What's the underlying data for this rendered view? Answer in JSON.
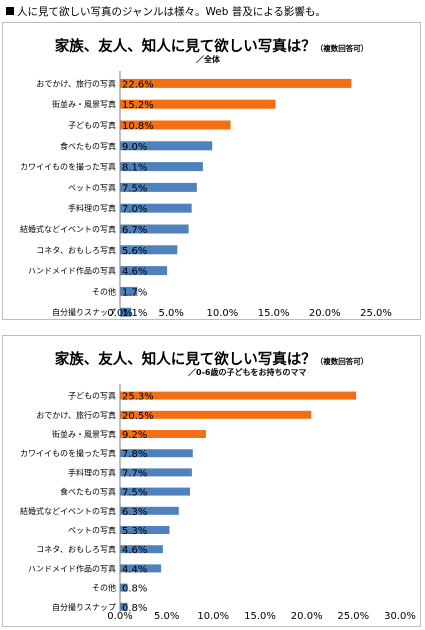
{
  "header": {
    "text": "人に見て欲しい写真のジャンルは様々。Web 普及による影響も。"
  },
  "colors": {
    "highlight": "#f36f14",
    "normal": "#4f81bd",
    "axis": "#808080",
    "border": "#bdbdbd"
  },
  "chart_data": [
    {
      "type": "bar",
      "orientation": "horizontal",
      "title": "家族、友人、知人に見て欲しい写真は？",
      "title_note": "（複数回答可）",
      "subtitle": "／全体",
      "categories": [
        "おでかけ、旅行の写真",
        "街並み・風景写真",
        "子どもの写真",
        "食べたもの写真",
        "カワイイものを撮った写真",
        "ペットの写真",
        "手料理の写真",
        "結婚式などイベントの写真",
        "コネタ、おもしろ写真",
        "ハンドメイド作品の写真",
        "その他",
        "自分撮りスナップ"
      ],
      "values": [
        22.6,
        15.2,
        10.8,
        9.0,
        8.1,
        7.5,
        7.0,
        6.7,
        5.6,
        4.6,
        1.7,
        1.1
      ],
      "value_labels": [
        "22.6%",
        "15.2%",
        "10.8%",
        "9.0%",
        "8.1%",
        "7.5%",
        "7.0%",
        "6.7%",
        "5.6%",
        "4.6%",
        "1.7%",
        "1.1%"
      ],
      "highlighted": [
        true,
        true,
        true,
        false,
        false,
        false,
        false,
        false,
        false,
        false,
        false,
        false
      ],
      "xlim": [
        0,
        25
      ],
      "ticks": [
        0,
        5,
        10,
        15,
        20,
        25
      ],
      "tick_labels": [
        "0.0%",
        "5.0%",
        "10.0%",
        "15.0%",
        "20.0%",
        "25.0%"
      ],
      "grid": false,
      "legend": "none"
    },
    {
      "type": "bar",
      "orientation": "horizontal",
      "title": "家族、友人、知人に見て欲しい写真は？",
      "title_note": "（複数回答可）",
      "subtitle": "／0-6歳の子どもをお持ちのママ",
      "categories": [
        "子どもの写真",
        "おでかけ、旅行の写真",
        "街並み・風景写真",
        "カワイイものを撮った写真",
        "手料理の写真",
        "食べたもの写真",
        "結婚式などイベントの写真",
        "ペットの写真",
        "コネタ、おもしろ写真",
        "ハンドメイド作品の写真",
        "その他",
        "自分撮りスナップ"
      ],
      "values": [
        25.3,
        20.5,
        9.2,
        7.8,
        7.7,
        7.5,
        6.3,
        5.3,
        4.6,
        4.4,
        0.8,
        0.8
      ],
      "value_labels": [
        "25.3%",
        "20.5%",
        "9.2%",
        "7.8%",
        "7.7%",
        "7.5%",
        "6.3%",
        "5.3%",
        "4.6%",
        "4.4%",
        "0.8%",
        "0.8%"
      ],
      "highlighted": [
        true,
        true,
        true,
        false,
        false,
        false,
        false,
        false,
        false,
        false,
        false,
        false
      ],
      "xlim": [
        0,
        30
      ],
      "ticks": [
        0,
        5,
        10,
        15,
        20,
        25,
        30
      ],
      "tick_labels": [
        "0.0%",
        "5.0%",
        "10.0%",
        "15.0%",
        "20.0%",
        "25.0%",
        "30.0%"
      ],
      "grid": false,
      "legend": "none"
    }
  ]
}
